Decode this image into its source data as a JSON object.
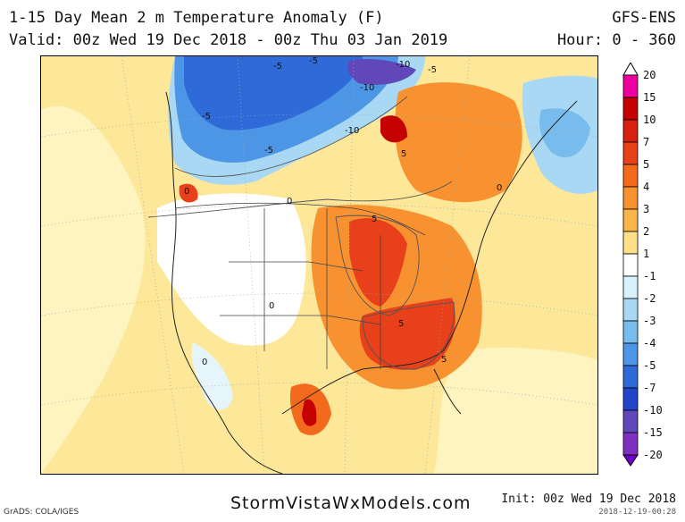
{
  "header": {
    "title": "1-15 Day Mean 2 m Temperature Anomaly (F)",
    "valid": "Valid: 00z Wed 19 Dec 2018 - 00z Thu 03 Jan 2019",
    "model": "GFS-ENS",
    "hour": "Hour: 0 - 360"
  },
  "colorbar": {
    "labels": [
      "20",
      "15",
      "10",
      "7",
      "5",
      "4",
      "3",
      "2",
      "1",
      "-1",
      "-2",
      "-3",
      "-4",
      "-5",
      "-7",
      "-10",
      "-15",
      "-20"
    ],
    "colors": [
      "#ee00a0",
      "#c40000",
      "#d82010",
      "#e8401a",
      "#f46a1c",
      "#f89230",
      "#fab64a",
      "#fde08a",
      "#ffffff",
      "#d8f2fa",
      "#a8d8f4",
      "#78bcee",
      "#4d96e6",
      "#2e6ad8",
      "#2244c8",
      "#6048b8",
      "#8030c0"
    ]
  },
  "map": {
    "contour_labels": [
      "-5",
      "-10",
      "-10",
      "-5",
      "-5",
      "-5",
      "-10",
      "-5",
      "5",
      "0",
      "0",
      "0",
      "0",
      "5",
      "5",
      "5",
      "0"
    ]
  },
  "footer": {
    "site": "StormVistaWxModels.com",
    "init": "Init: 00z Wed 19 Dec 2018",
    "stamp": "2018-12-19-00:28",
    "credit": "GrADS: COLA/IGES"
  }
}
